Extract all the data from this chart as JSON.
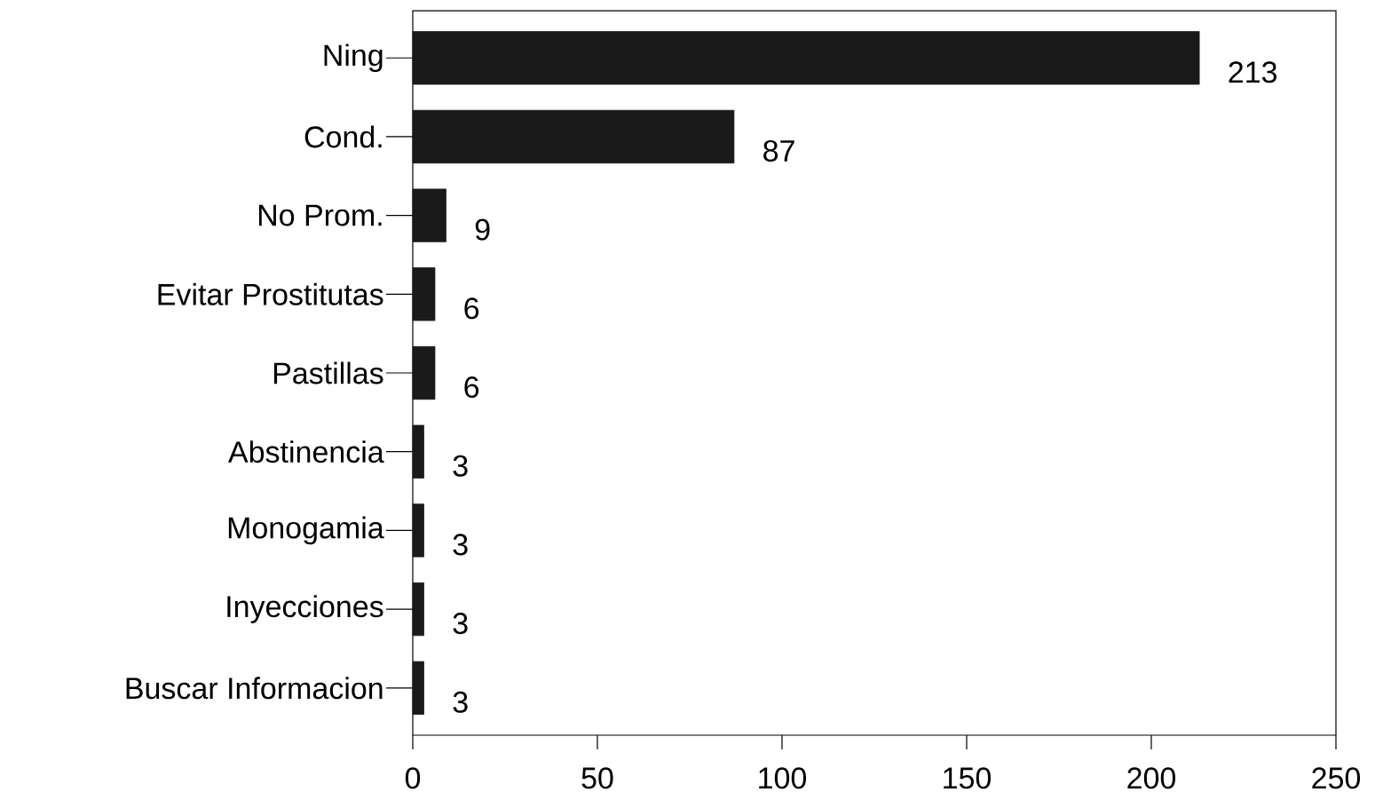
{
  "chart_data": {
    "type": "bar",
    "orientation": "horizontal",
    "categories": [
      "Ning",
      "Cond.",
      "No Prom.",
      "Evitar Prostitutas",
      "Pastillas",
      "Abstinencia",
      "Monogamia",
      "Inyecciones",
      "Buscar Informacion"
    ],
    "values": [
      213,
      87,
      9,
      6,
      6,
      3,
      3,
      3,
      3
    ],
    "color": "#1a1a1a",
    "xlim": [
      0,
      250
    ],
    "xticks": [
      0,
      50,
      100,
      150,
      200,
      250
    ],
    "data_labels": true
  }
}
